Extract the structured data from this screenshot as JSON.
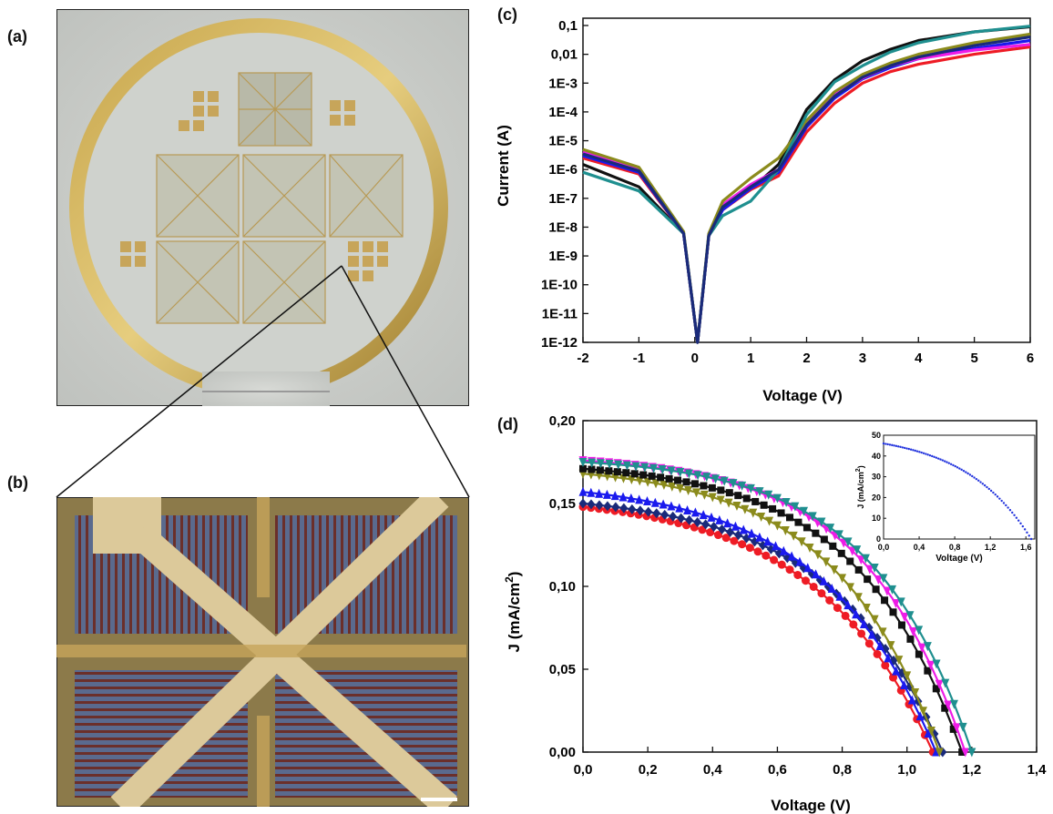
{
  "panels": {
    "a": "(a)",
    "b": "(b)",
    "c": "(c)",
    "d": "(d)"
  },
  "images": {
    "a": "wafer-photo",
    "b": "micrograph-electrode"
  },
  "colors": {
    "black": "#111111",
    "red": "#ee1c25",
    "blue": "#1a1aee",
    "magenta": "#ee1ce6",
    "olive": "#8b8b1c",
    "teal": "#1f8f8f",
    "navy": "#1a2a7a",
    "inset_blue": "#2233dd"
  },
  "chart_data": [
    {
      "id": "c",
      "type": "line",
      "xlabel": "Voltage (V)",
      "ylabel": "Current (A)",
      "xlim": [
        -2,
        6
      ],
      "ylim": [
        1e-12,
        0.1
      ],
      "log_y": true,
      "x_ticks": [
        "-2",
        "-1",
        "0",
        "1",
        "2",
        "3",
        "4",
        "5",
        "6"
      ],
      "y_ticks": [
        "1E-12",
        "1E-11",
        "1E-10",
        "1E-9",
        "1E-8",
        "1E-7",
        "1E-6",
        "1E-5",
        "1E-4",
        "1E-3",
        "0,01",
        "0,1"
      ],
      "series": [
        {
          "color": "#111111",
          "points": [
            [
              -2,
              1.5e-06
            ],
            [
              -1,
              2.5e-07
            ],
            [
              -0.2,
              6e-09
            ],
            [
              0.05,
              1e-12
            ],
            [
              0.25,
              5e-09
            ],
            [
              0.5,
              5e-08
            ],
            [
              1,
              2e-07
            ],
            [
              1.5,
              1.5e-06
            ],
            [
              2,
              0.00012
            ],
            [
              2.5,
              0.0013
            ],
            [
              3,
              0.006
            ],
            [
              3.5,
              0.015
            ],
            [
              4,
              0.03
            ],
            [
              5,
              0.06
            ],
            [
              6,
              0.09
            ]
          ]
        },
        {
          "color": "#ee1c25",
          "points": [
            [
              -2,
              2.5e-06
            ],
            [
              -1,
              7e-07
            ],
            [
              -0.2,
              6e-09
            ],
            [
              0.05,
              1e-12
            ],
            [
              0.25,
              5e-09
            ],
            [
              0.5,
              4e-08
            ],
            [
              1,
              2e-07
            ],
            [
              1.5,
              6e-07
            ],
            [
              2,
              2e-05
            ],
            [
              2.5,
              0.0002
            ],
            [
              3,
              0.001
            ],
            [
              3.5,
              0.0025
            ],
            [
              4,
              0.0045
            ],
            [
              5,
              0.01
            ],
            [
              6,
              0.018
            ]
          ]
        },
        {
          "color": "#1a1aee",
          "points": [
            [
              -2,
              3e-06
            ],
            [
              -1,
              8e-07
            ],
            [
              -0.2,
              6e-09
            ],
            [
              0.05,
              1e-12
            ],
            [
              0.25,
              5e-09
            ],
            [
              0.5,
              4e-08
            ],
            [
              1,
              2.2e-07
            ],
            [
              1.5,
              8e-07
            ],
            [
              2,
              3e-05
            ],
            [
              2.5,
              0.0003
            ],
            [
              3,
              0.0014
            ],
            [
              3.5,
              0.0035
            ],
            [
              4,
              0.007
            ],
            [
              5,
              0.016
            ],
            [
              6,
              0.03
            ]
          ]
        },
        {
          "color": "#ee1ce6",
          "points": [
            [
              -2,
              4e-06
            ],
            [
              -1,
              1e-06
            ],
            [
              -0.2,
              6e-09
            ],
            [
              0.05,
              1e-12
            ],
            [
              0.25,
              5e-09
            ],
            [
              0.5,
              6e-08
            ],
            [
              1,
              3e-07
            ],
            [
              1.5,
              1e-06
            ],
            [
              2,
              4e-05
            ],
            [
              2.5,
              0.0004
            ],
            [
              3,
              0.0015
            ],
            [
              3.5,
              0.004
            ],
            [
              4,
              0.007
            ],
            [
              5,
              0.014
            ],
            [
              6,
              0.022
            ]
          ]
        },
        {
          "color": "#8b8b1c",
          "points": [
            [
              -2,
              5e-06
            ],
            [
              -1,
              1.2e-06
            ],
            [
              -0.2,
              7e-09
            ],
            [
              0.05,
              1e-12
            ],
            [
              0.25,
              6e-09
            ],
            [
              0.5,
              8e-08
            ],
            [
              1,
              5e-07
            ],
            [
              1.5,
              2.5e-06
            ],
            [
              2,
              5e-05
            ],
            [
              2.5,
              0.0005
            ],
            [
              3,
              0.002
            ],
            [
              3.5,
              0.005
            ],
            [
              4,
              0.01
            ],
            [
              5,
              0.025
            ],
            [
              6,
              0.05
            ]
          ]
        },
        {
          "color": "#1f8f8f",
          "points": [
            [
              -2,
              8e-07
            ],
            [
              -1,
              1.8e-07
            ],
            [
              -0.2,
              6e-09
            ],
            [
              0.05,
              1e-12
            ],
            [
              0.25,
              5e-09
            ],
            [
              0.5,
              2.5e-08
            ],
            [
              1,
              8e-08
            ],
            [
              1.5,
              1e-06
            ],
            [
              2,
              8e-05
            ],
            [
              2.5,
              0.0011
            ],
            [
              3,
              0.004
            ],
            [
              3.5,
              0.012
            ],
            [
              4,
              0.025
            ],
            [
              5,
              0.06
            ],
            [
              6,
              0.095
            ]
          ]
        },
        {
          "color": "#1a2a7a",
          "points": [
            [
              -2,
              3.5e-06
            ],
            [
              -1,
              9e-07
            ],
            [
              -0.2,
              6e-09
            ],
            [
              0.05,
              1e-12
            ],
            [
              0.25,
              5e-09
            ],
            [
              0.5,
              5e-08
            ],
            [
              1,
              2.5e-07
            ],
            [
              1.5,
              1e-06
            ],
            [
              2,
              3.5e-05
            ],
            [
              2.5,
              0.00035
            ],
            [
              3,
              0.0016
            ],
            [
              3.5,
              0.004
            ],
            [
              4,
              0.008
            ],
            [
              5,
              0.02
            ],
            [
              6,
              0.04
            ]
          ]
        }
      ]
    },
    {
      "id": "d",
      "type": "line",
      "xlabel": "Voltage (V)",
      "ylabel": "J (mA/cm",
      "ylabel_sup": "2",
      "ylabel_end": ")",
      "xlim": [
        0,
        1.4
      ],
      "ylim": [
        0,
        0.2
      ],
      "x_ticks": [
        "0,0",
        "0,2",
        "0,4",
        "0,6",
        "0,8",
        "1,0",
        "1,2",
        "1,4"
      ],
      "y_ticks": [
        "0,00",
        "0,05",
        "0,10",
        "0,15",
        "0,20"
      ],
      "series": [
        {
          "color": "#ee1c25",
          "marker": "circle",
          "jsc": 0.148,
          "voc": 1.08,
          "k": 3.0
        },
        {
          "color": "#1a2a7a",
          "marker": "diamond",
          "jsc": 0.15,
          "voc": 1.11,
          "k": 3.2
        },
        {
          "color": "#1a1aee",
          "marker": "triangle-up",
          "jsc": 0.157,
          "voc": 1.09,
          "k": 3.1
        },
        {
          "color": "#8b8b1c",
          "marker": "triangle-down",
          "jsc": 0.168,
          "voc": 1.1,
          "k": 3.4
        },
        {
          "color": "#111111",
          "marker": "square",
          "jsc": 0.171,
          "voc": 1.17,
          "k": 3.6
        },
        {
          "color": "#ee1ce6",
          "marker": "triangle-down",
          "jsc": 0.176,
          "voc": 1.18,
          "k": 3.8
        },
        {
          "color": "#1f8f8f",
          "marker": "triangle-down",
          "jsc": 0.175,
          "voc": 1.2,
          "k": 3.9
        }
      ],
      "inset": {
        "type": "scatter",
        "xlabel": "Voltage (V)",
        "ylabel": "J (mA/cm",
        "ylabel_sup": "2",
        "ylabel_end": ")",
        "xlim": [
          0,
          1.7
        ],
        "ylim": [
          0,
          50
        ],
        "x_ticks": [
          "0,0",
          "0,4",
          "0,8",
          "1,2",
          "1,6"
        ],
        "y_ticks": [
          "0",
          "10",
          "20",
          "30",
          "40",
          "50"
        ],
        "color": "#2233dd",
        "jsc": 46,
        "voc": 1.66
      }
    }
  ]
}
